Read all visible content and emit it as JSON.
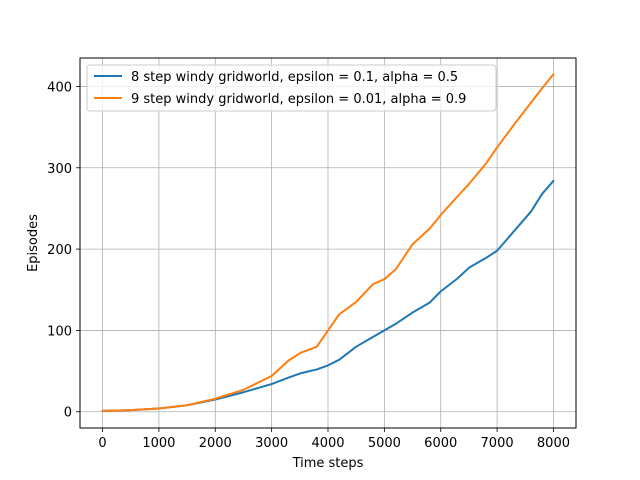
{
  "chart_data": {
    "type": "line",
    "title": "",
    "xlabel": "Time steps",
    "ylabel": "Episodes",
    "xlim": [
      -400,
      8400
    ],
    "ylim": [
      -20,
      435
    ],
    "xticks": [
      0,
      1000,
      2000,
      3000,
      4000,
      5000,
      6000,
      7000,
      8000
    ],
    "yticks": [
      0,
      100,
      200,
      300,
      400
    ],
    "grid": true,
    "legend_position": "top-left",
    "series": [
      {
        "name": "8 step windy gridworld, epsilon = 0.1, alpha = 0.5",
        "color": "#1f77b4",
        "x": [
          0,
          500,
          1000,
          1500,
          2000,
          2500,
          3000,
          3300,
          3500,
          3800,
          4000,
          4200,
          4500,
          4800,
          5000,
          5200,
          5500,
          5800,
          6000,
          6300,
          6500,
          6800,
          7000,
          7300,
          7600,
          7800,
          8000
        ],
        "y": [
          1,
          2,
          4,
          8,
          15,
          24,
          34,
          42,
          47,
          52,
          57,
          64,
          80,
          92,
          100,
          108,
          122,
          134,
          148,
          164,
          177,
          189,
          198,
          222,
          246,
          268,
          284
        ]
      },
      {
        "name": "9 step windy gridworld, epsilon = 0.01, alpha = 0.9",
        "color": "#ff7f0e",
        "x": [
          0,
          500,
          1000,
          1500,
          2000,
          2500,
          3000,
          3300,
          3500,
          3800,
          4000,
          4200,
          4500,
          4800,
          5000,
          5200,
          5500,
          5800,
          6000,
          6300,
          6500,
          6800,
          7000,
          7300,
          7600,
          7800,
          8000
        ],
        "y": [
          1,
          2,
          4,
          8,
          16,
          27,
          44,
          63,
          72,
          80,
          100,
          120,
          135,
          157,
          163,
          175,
          206,
          225,
          242,
          265,
          280,
          305,
          325,
          353,
          380,
          398,
          415
        ]
      }
    ]
  }
}
